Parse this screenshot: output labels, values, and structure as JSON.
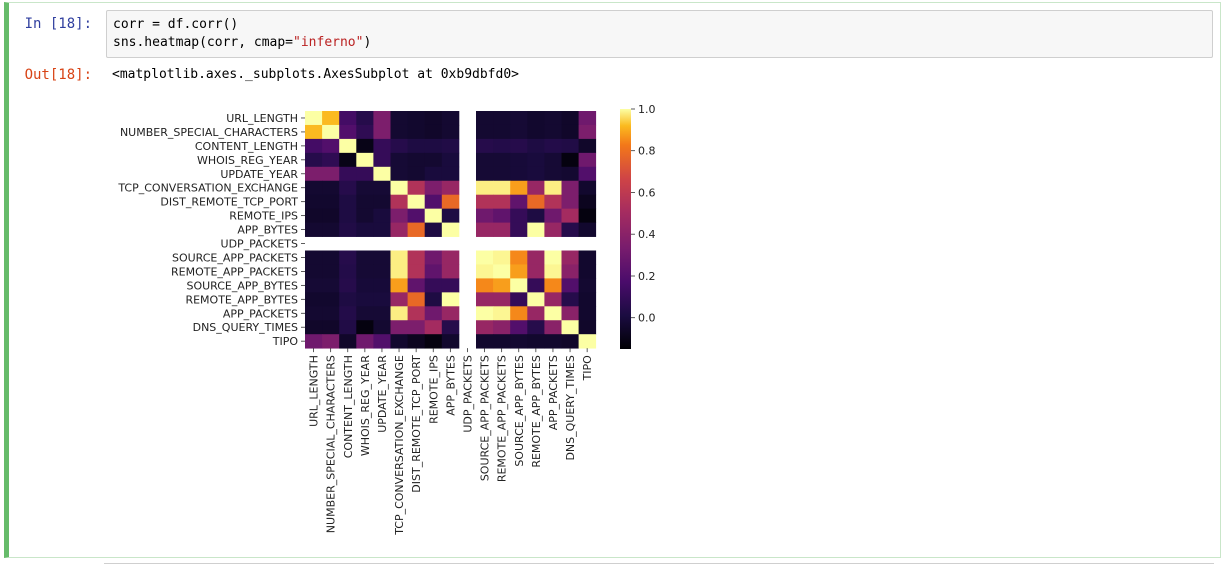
{
  "cell": {
    "in_prompt": "In [18]:",
    "out_prompt": "Out[18]:",
    "code_line1": "corr = df.corr()",
    "code_line2_pre": "sns.heatmap(corr, cmap=",
    "code_line2_str": "\"inferno\"",
    "code_line2_post": ")",
    "output_text": "<matplotlib.axes._subplots.AxesSubplot at 0xb9dbfd0>"
  },
  "chart_data": {
    "type": "heatmap",
    "colormap": "inferno",
    "labels": [
      "URL_LENGTH",
      "NUMBER_SPECIAL_CHARACTERS",
      "CONTENT_LENGTH",
      "WHOIS_REG_YEAR",
      "UPDATE_YEAR",
      "TCP_CONVERSATION_EXCHANGE",
      "DIST_REMOTE_TCP_PORT",
      "REMOTE_IPS",
      "APP_BYTES",
      "UDP_PACKETS",
      "SOURCE_APP_PACKETS",
      "REMOTE_APP_PACKETS",
      "SOURCE_APP_BYTES",
      "REMOTE_APP_BYTES",
      "APP_PACKETS",
      "DNS_QUERY_TIMES",
      "TIPO"
    ],
    "vmin": -0.15,
    "vmax": 1.0,
    "colorbar_ticks": [
      "0.0",
      "0.2",
      "0.4",
      "0.6",
      "0.8",
      "1.0"
    ],
    "colorbar_tick_values": [
      0.0,
      0.2,
      0.4,
      0.6,
      0.8,
      1.0
    ],
    "missing_index": 9,
    "matrix": [
      [
        1.0,
        0.92,
        0.15,
        0.05,
        0.35,
        -0.03,
        -0.04,
        -0.05,
        -0.03,
        null,
        -0.03,
        -0.03,
        -0.02,
        -0.04,
        -0.03,
        -0.05,
        0.3
      ],
      [
        0.92,
        1.0,
        0.2,
        0.08,
        0.35,
        -0.03,
        -0.04,
        -0.05,
        -0.03,
        null,
        -0.03,
        -0.03,
        -0.02,
        -0.04,
        -0.03,
        -0.05,
        0.35
      ],
      [
        0.15,
        0.2,
        1.0,
        -0.1,
        0.1,
        0.05,
        0.02,
        0.02,
        0.03,
        null,
        0.05,
        0.04,
        0.05,
        0.02,
        0.04,
        0.03,
        -0.05
      ],
      [
        0.05,
        0.08,
        -0.1,
        1.0,
        0.1,
        -0.02,
        -0.03,
        -0.03,
        0.0,
        null,
        -0.02,
        -0.02,
        -0.01,
        0.0,
        -0.02,
        -0.12,
        0.3
      ],
      [
        0.35,
        0.35,
        0.1,
        0.1,
        1.0,
        -0.02,
        -0.03,
        0.0,
        0.0,
        null,
        -0.02,
        -0.02,
        -0.01,
        0.0,
        -0.02,
        -0.03,
        0.2
      ],
      [
        -0.03,
        -0.03,
        0.05,
        -0.02,
        -0.02,
        1.0,
        0.55,
        0.35,
        0.45,
        null,
        0.98,
        0.98,
        0.88,
        0.45,
        0.98,
        0.35,
        -0.04
      ],
      [
        -0.04,
        -0.04,
        0.02,
        -0.03,
        -0.03,
        0.55,
        1.0,
        0.2,
        0.78,
        null,
        0.55,
        0.55,
        0.25,
        0.78,
        0.55,
        0.35,
        -0.08
      ],
      [
        -0.05,
        -0.05,
        0.02,
        -0.03,
        0.0,
        0.35,
        0.2,
        1.0,
        0.02,
        null,
        0.3,
        0.25,
        0.1,
        0.02,
        0.3,
        0.5,
        -0.12
      ],
      [
        -0.03,
        -0.03,
        0.03,
        0.0,
        0.0,
        0.45,
        0.78,
        0.02,
        1.0,
        null,
        0.45,
        0.45,
        0.1,
        1.0,
        0.45,
        0.05,
        -0.04
      ],
      [
        null,
        null,
        null,
        null,
        null,
        null,
        null,
        null,
        null,
        null,
        null,
        null,
        null,
        null,
        null,
        null,
        null
      ],
      [
        -0.03,
        -0.03,
        0.05,
        -0.02,
        -0.02,
        0.98,
        0.55,
        0.3,
        0.45,
        null,
        1.0,
        0.99,
        0.85,
        0.45,
        1.0,
        0.45,
        -0.04
      ],
      [
        -0.03,
        -0.03,
        0.04,
        -0.02,
        -0.02,
        0.98,
        0.55,
        0.25,
        0.45,
        null,
        0.99,
        1.0,
        0.88,
        0.45,
        0.99,
        0.4,
        -0.04
      ],
      [
        -0.02,
        -0.02,
        0.05,
        -0.01,
        -0.01,
        0.88,
        0.25,
        0.1,
        0.1,
        null,
        0.85,
        0.88,
        1.0,
        0.1,
        0.85,
        0.2,
        -0.03
      ],
      [
        -0.04,
        -0.04,
        0.02,
        0.0,
        0.0,
        0.45,
        0.78,
        0.02,
        1.0,
        null,
        0.45,
        0.45,
        0.1,
        1.0,
        0.45,
        0.05,
        -0.04
      ],
      [
        -0.03,
        -0.03,
        0.04,
        -0.02,
        -0.02,
        0.98,
        0.55,
        0.3,
        0.45,
        null,
        1.0,
        0.99,
        0.85,
        0.45,
        1.0,
        0.4,
        -0.04
      ],
      [
        -0.05,
        -0.05,
        0.03,
        -0.12,
        -0.03,
        0.35,
        0.35,
        0.5,
        0.05,
        null,
        0.45,
        0.4,
        0.2,
        0.05,
        0.4,
        1.0,
        -0.05
      ],
      [
        0.3,
        0.35,
        -0.05,
        0.3,
        0.2,
        -0.04,
        -0.08,
        -0.12,
        -0.04,
        null,
        -0.04,
        -0.04,
        -0.03,
        -0.04,
        -0.04,
        -0.05,
        1.0
      ]
    ]
  }
}
